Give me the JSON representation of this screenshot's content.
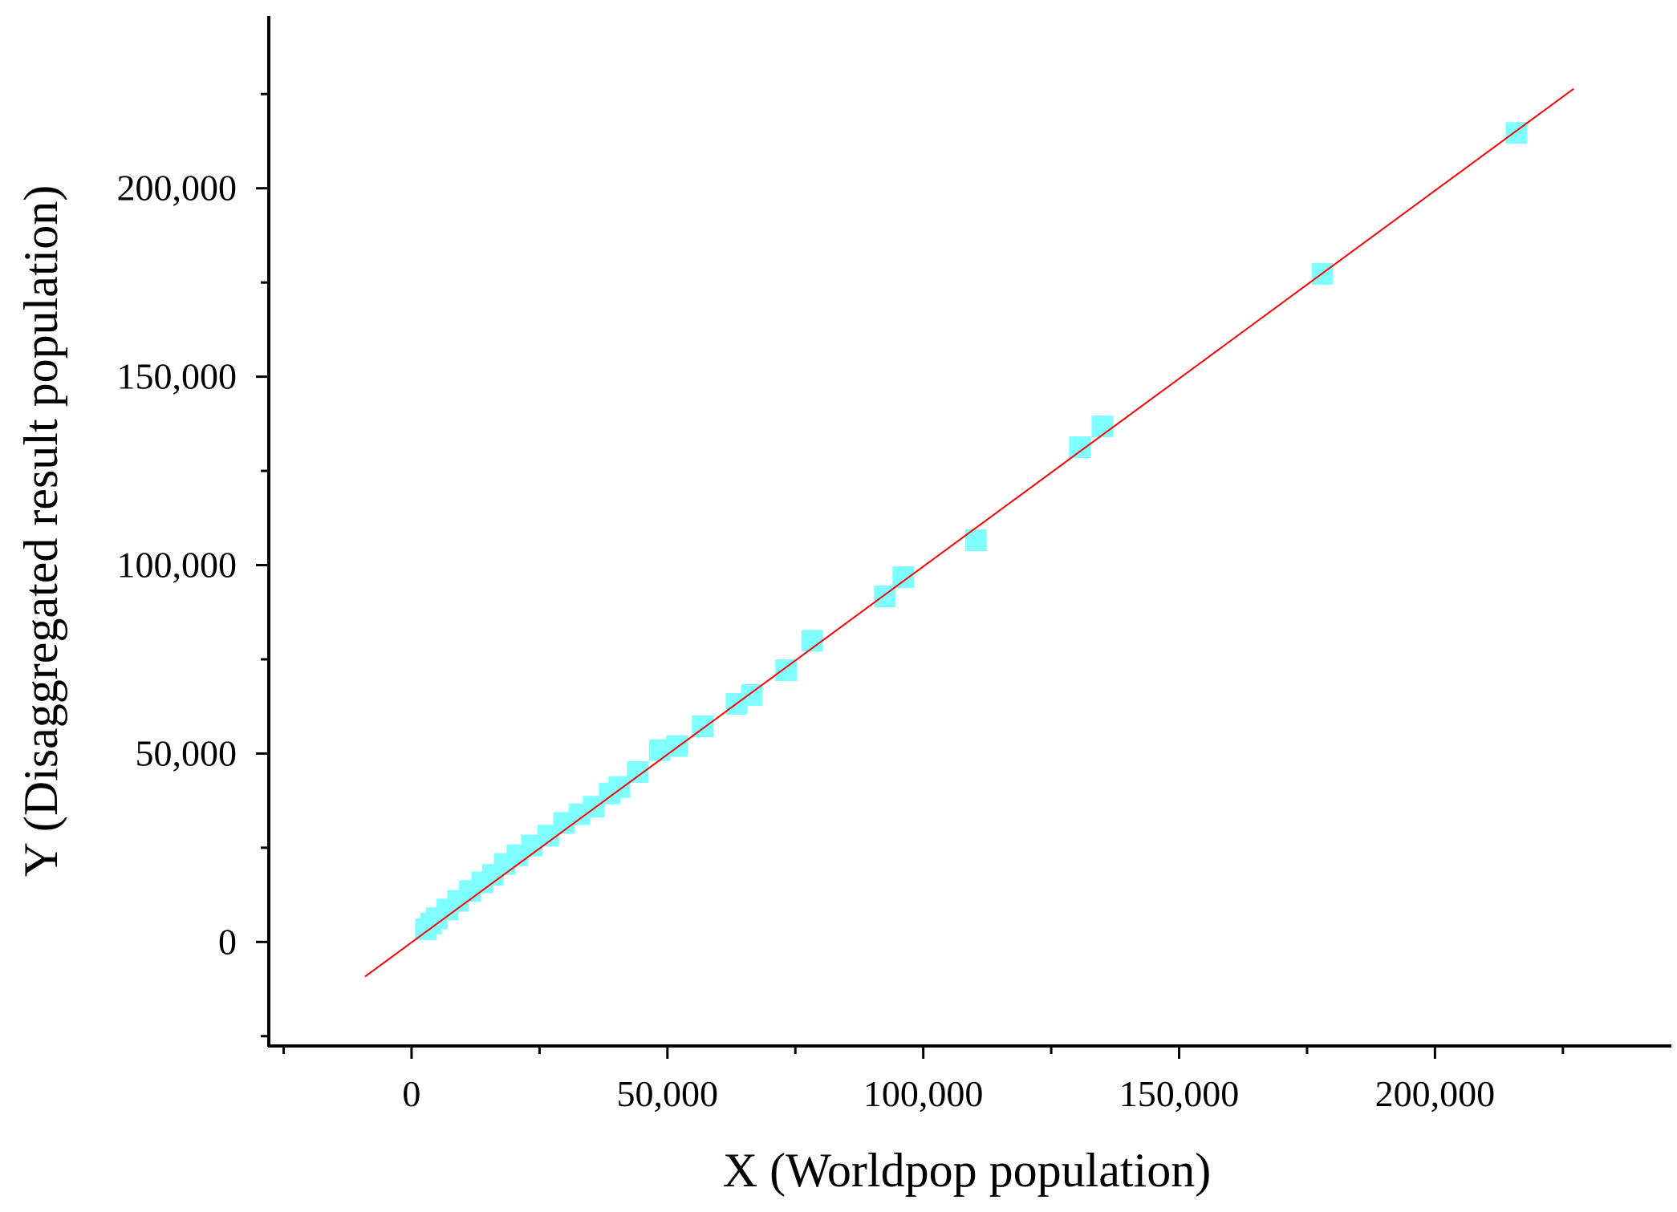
{
  "chart_data": {
    "type": "scatter",
    "xlabel": "X (Worldpop population)",
    "ylabel": "Y (Disaggregated result population)",
    "x": [
      2800,
      3800,
      4900,
      7000,
      9100,
      11400,
      13800,
      15900,
      18200,
      20700,
      23500,
      26700,
      29800,
      32800,
      35600,
      38700,
      40600,
      44200,
      48500,
      51900,
      56900,
      63500,
      66500,
      73200,
      78300,
      92500,
      96100,
      110300,
      130600,
      135000,
      178000,
      215900
    ],
    "values": [
      3400,
      4900,
      6300,
      8600,
      10900,
      13500,
      15800,
      17800,
      20700,
      23000,
      25600,
      28200,
      31600,
      33900,
      35900,
      39400,
      41100,
      45100,
      50900,
      52000,
      57200,
      63200,
      65500,
      72100,
      79900,
      91700,
      96800,
      106600,
      131300,
      136800,
      177300,
      214700
    ],
    "color": "#7fffff",
    "fit_line": {
      "x": [
        -9100,
        227100
      ],
      "y": [
        -9200,
        226400
      ],
      "color": "#ff0000"
    },
    "xlim": [
      -27900,
      246200
    ],
    "ylim": [
      -27600,
      245700
    ],
    "xticks": [
      0,
      {
        "value": 50000,
        "label": "50,000"
      },
      {
        "value": 100000,
        "label": "100,000"
      },
      {
        "value": 150000,
        "label": "150,000"
      },
      {
        "value": 200000,
        "label": "200,000"
      }
    ],
    "yticks": [
      0,
      {
        "value": 50000,
        "label": "50,000"
      },
      {
        "value": 100000,
        "label": "100,000"
      },
      {
        "value": 150000,
        "label": "150,000"
      },
      {
        "value": 200000,
        "label": "200,000"
      }
    ],
    "xminorticks": [
      -25000,
      25000,
      75000,
      125000,
      175000,
      225000
    ],
    "yminorticks": [
      -25000,
      25000,
      75000,
      125000,
      175000,
      225000
    ],
    "grid": false
  }
}
